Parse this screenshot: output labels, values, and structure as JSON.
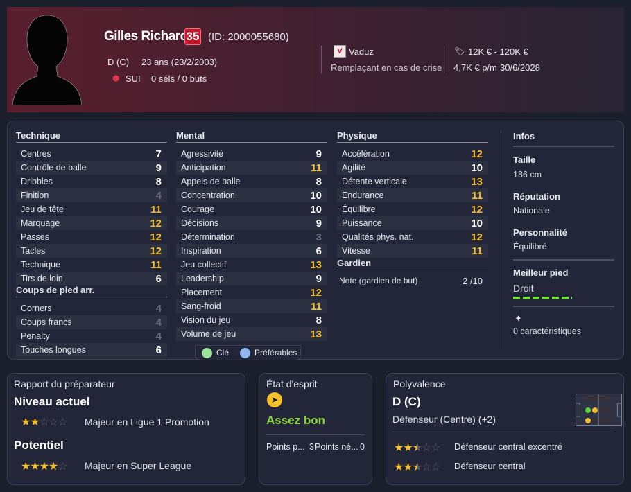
{
  "header": {
    "name": "Gilles Richard",
    "ability_badge": "35",
    "id": "(ID: 2000055680)",
    "position": "D (C)",
    "age": "23 ans (23/2/2003)",
    "nation": "SUI",
    "caps": "0 séls / 0 buts",
    "club": "Vaduz",
    "role": "Remplaçant en cas de crise",
    "value": "12K € - 120K €",
    "wage": "4,7K € p/m",
    "contract_end": "30/6/2028"
  },
  "attributes": {
    "technique": {
      "title": "Technique",
      "items": [
        [
          "Centres",
          "7"
        ],
        [
          "Contrôle de balle",
          "9"
        ],
        [
          "Dribbles",
          "8"
        ],
        [
          "Finition",
          "4"
        ],
        [
          "Jeu de tête",
          "11"
        ],
        [
          "Marquage",
          "12"
        ],
        [
          "Passes",
          "12"
        ],
        [
          "Tacles",
          "12"
        ],
        [
          "Technique",
          "11"
        ],
        [
          "Tirs de loin",
          "6"
        ]
      ]
    },
    "set_pieces": {
      "title": "Coups de pied arr.",
      "items": [
        [
          "Corners",
          "4"
        ],
        [
          "Coups francs",
          "4"
        ],
        [
          "Penalty",
          "4"
        ],
        [
          "Touches longues",
          "6"
        ]
      ]
    },
    "mental": {
      "title": "Mental",
      "items": [
        [
          "Agressivité",
          "9"
        ],
        [
          "Anticipation",
          "11"
        ],
        [
          "Appels de balle",
          "8"
        ],
        [
          "Concentration",
          "10"
        ],
        [
          "Courage",
          "10"
        ],
        [
          "Décisions",
          "9"
        ],
        [
          "Détermination",
          "3"
        ],
        [
          "Inspiration",
          "6"
        ],
        [
          "Jeu collectif",
          "13"
        ],
        [
          "Leadership",
          "9"
        ],
        [
          "Placement",
          "12"
        ],
        [
          "Sang-froid",
          "11"
        ],
        [
          "Vision du jeu",
          "8"
        ],
        [
          "Volume de jeu",
          "13"
        ]
      ]
    },
    "physical": {
      "title": "Physique",
      "items": [
        [
          "Accélération",
          "12"
        ],
        [
          "Agilité",
          "10"
        ],
        [
          "Détente verticale",
          "13"
        ],
        [
          "Endurance",
          "11"
        ],
        [
          "Équilibre",
          "12"
        ],
        [
          "Puissance",
          "10"
        ],
        [
          "Qualités phys. nat.",
          "12"
        ],
        [
          "Vitesse",
          "11"
        ]
      ]
    },
    "goalkeeper": {
      "title": "Gardien",
      "label": "Note (gardien de but)",
      "value": "2 /10"
    }
  },
  "legend": {
    "key": "Clé",
    "preferred": "Préférables",
    "key_color": "#9be29b",
    "preferred_color": "#8fb8f0"
  },
  "infos": {
    "title": "Infos",
    "height_label": "Taille",
    "height": "186 cm",
    "reputation_label": "Réputation",
    "reputation": "Nationale",
    "personality_label": "Personnalité",
    "personality": "Équilibré",
    "foot_label": "Meilleur pied",
    "foot": "Droit",
    "traits": "0 caractéristiques"
  },
  "scout": {
    "title": "Rapport du préparateur",
    "current_label": "Niveau actuel",
    "current_stars": 2,
    "current_text": "Majeur en Ligue 1 Promotion",
    "potential_label": "Potentiel",
    "potential_stars": 4,
    "potential_text": "Majeur en Super League"
  },
  "morale": {
    "title": "État d'esprit",
    "value": "Assez bon",
    "points_pos": "Points p...",
    "points_pos_val": "3",
    "points_neg": "Points né...",
    "points_neg_val": "0"
  },
  "versatility": {
    "title": "Polyvalence",
    "position": "D (C)",
    "position_full": "Défenseur (Centre) (+2)",
    "roles": [
      {
        "name": "Défenseur central excentré",
        "stars": 2.5
      },
      {
        "name": "Défenseur central",
        "stars": 2.5
      }
    ]
  },
  "colors": {
    "accent_yellow": "#f5c02a",
    "good_green": "#8fd63a",
    "badge_red": "#c0182a"
  }
}
